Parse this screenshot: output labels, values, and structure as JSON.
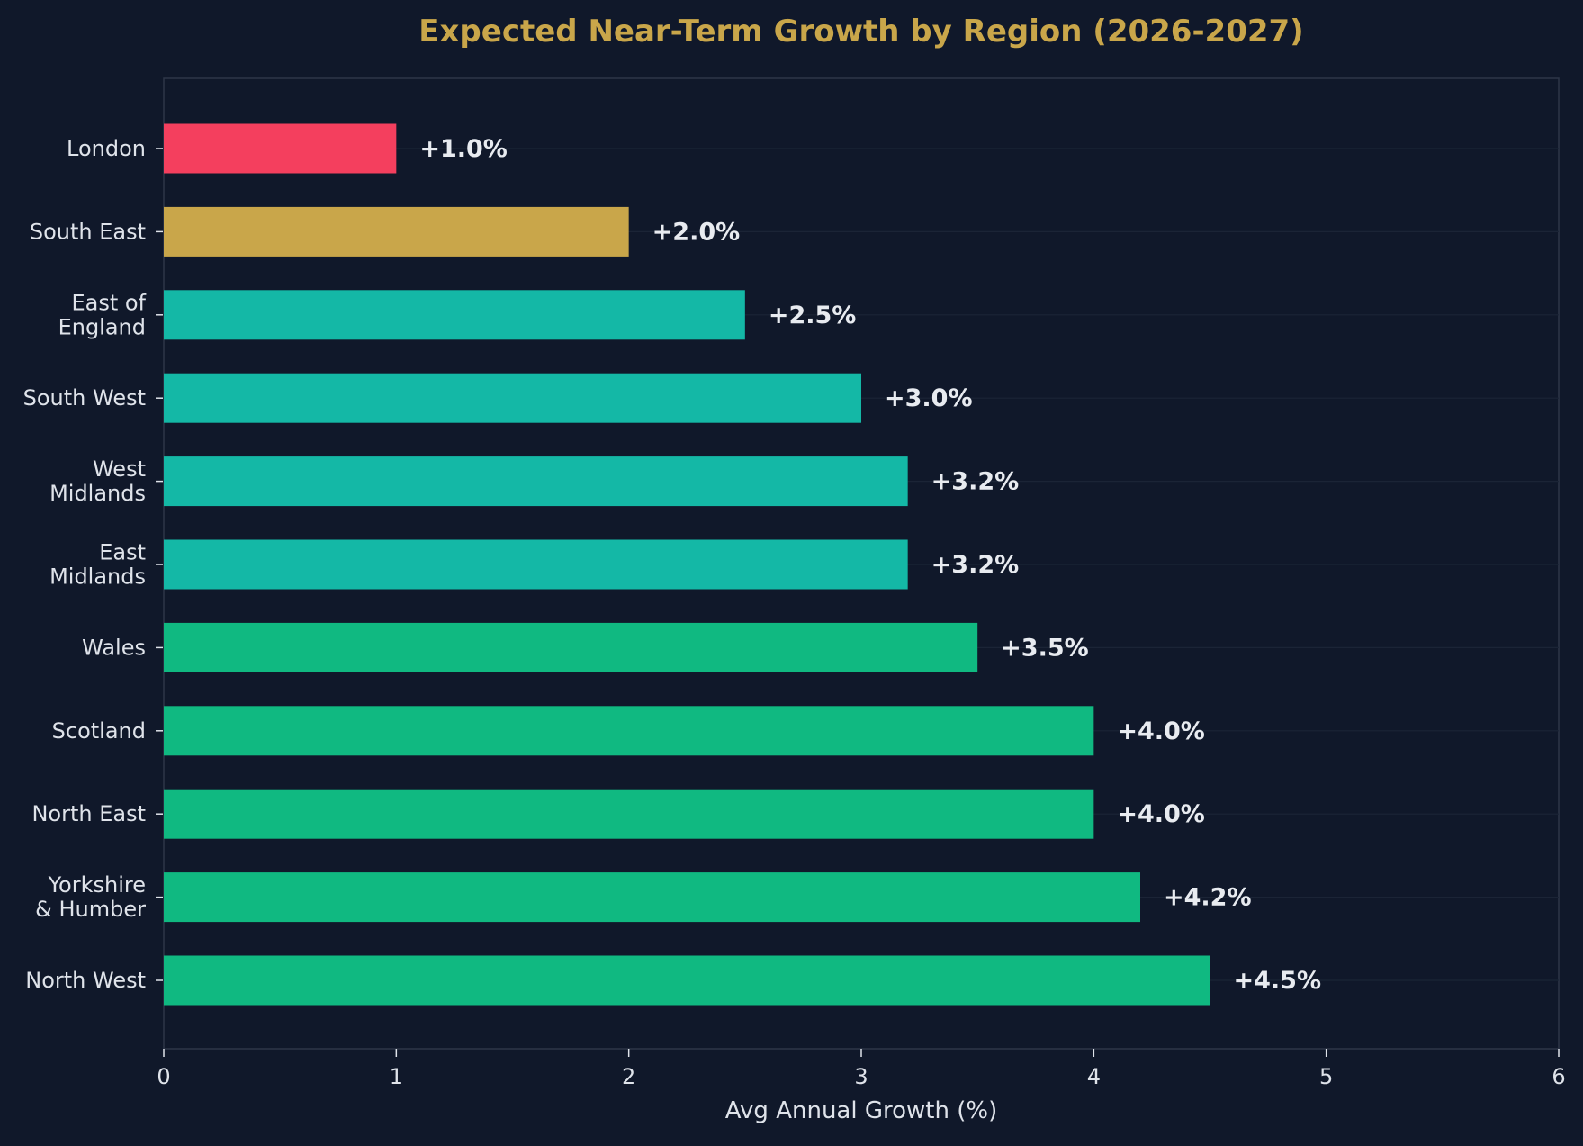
{
  "chart_data": {
    "type": "bar",
    "orientation": "horizontal",
    "title": "Expected Near-Term Growth by Region (2026-2027)",
    "xlabel": "Avg Annual Growth (%)",
    "ylabel": "",
    "xlim": [
      0,
      6
    ],
    "xticks": [
      0,
      1,
      2,
      3,
      4,
      5,
      6
    ],
    "grid": "horizontal lines at each category",
    "categories": [
      [
        "London"
      ],
      [
        "South East"
      ],
      [
        "East of",
        "England"
      ],
      [
        "South West"
      ],
      [
        "West",
        "Midlands"
      ],
      [
        "East",
        "Midlands"
      ],
      [
        "Wales"
      ],
      [
        "Scotland"
      ],
      [
        "North East"
      ],
      [
        "Yorkshire",
        "& Humber"
      ],
      [
        "North West"
      ]
    ],
    "values": [
      1.0,
      2.0,
      2.5,
      3.0,
      3.2,
      3.2,
      3.5,
      4.0,
      4.0,
      4.2,
      4.5
    ],
    "data_labels": [
      "+1.0%",
      "+2.0%",
      "+2.5%",
      "+3.0%",
      "+3.2%",
      "+3.2%",
      "+3.5%",
      "+4.0%",
      "+4.0%",
      "+4.2%",
      "+4.5%"
    ],
    "bar_colors": [
      "#f43f5e",
      "#c9a64a",
      "#14b8a6",
      "#14b8a6",
      "#14b8a6",
      "#14b8a6",
      "#10b981",
      "#10b981",
      "#10b981",
      "#10b981",
      "#10b981"
    ],
    "colors": {
      "background": "#10182a",
      "title": "#c9a64a",
      "text": "#dfe3ea",
      "label": "#e8ebf0",
      "axis": "#2d3648",
      "grid": "#1b2436"
    }
  }
}
